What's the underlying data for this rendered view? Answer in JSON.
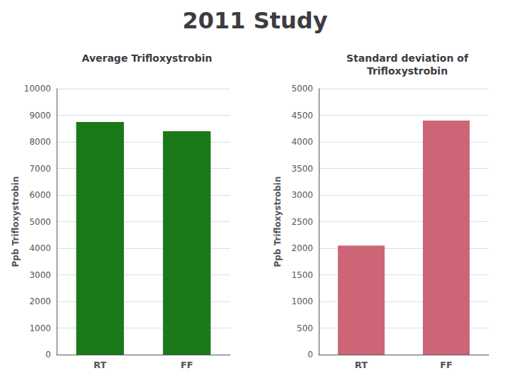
{
  "title": "2011 Study",
  "chart_data": [
    {
      "type": "bar",
      "title": "Average Trifloxystrobin",
      "ylabel": "Ppb Trifloxystrobin",
      "categories": [
        "RT",
        "FF"
      ],
      "values": [
        8750,
        8400
      ],
      "color": "#1a7a1a",
      "ylim": [
        0,
        10000
      ],
      "yticks": [
        0,
        1000,
        2000,
        3000,
        4000,
        5000,
        6000,
        7000,
        8000,
        9000,
        10000
      ],
      "grid": true
    },
    {
      "type": "bar",
      "title": "Standard deviation of\nTrifloxystrobin",
      "ylabel": "Ppb Trifloxystrobin",
      "categories": [
        "RT",
        "FF"
      ],
      "values": [
        2050,
        4400
      ],
      "color": "#cc6677",
      "ylim": [
        0,
        5000
      ],
      "yticks": [
        0,
        500,
        1000,
        1500,
        2000,
        2500,
        3000,
        3500,
        4000,
        4500,
        5000
      ],
      "grid": true
    }
  ]
}
